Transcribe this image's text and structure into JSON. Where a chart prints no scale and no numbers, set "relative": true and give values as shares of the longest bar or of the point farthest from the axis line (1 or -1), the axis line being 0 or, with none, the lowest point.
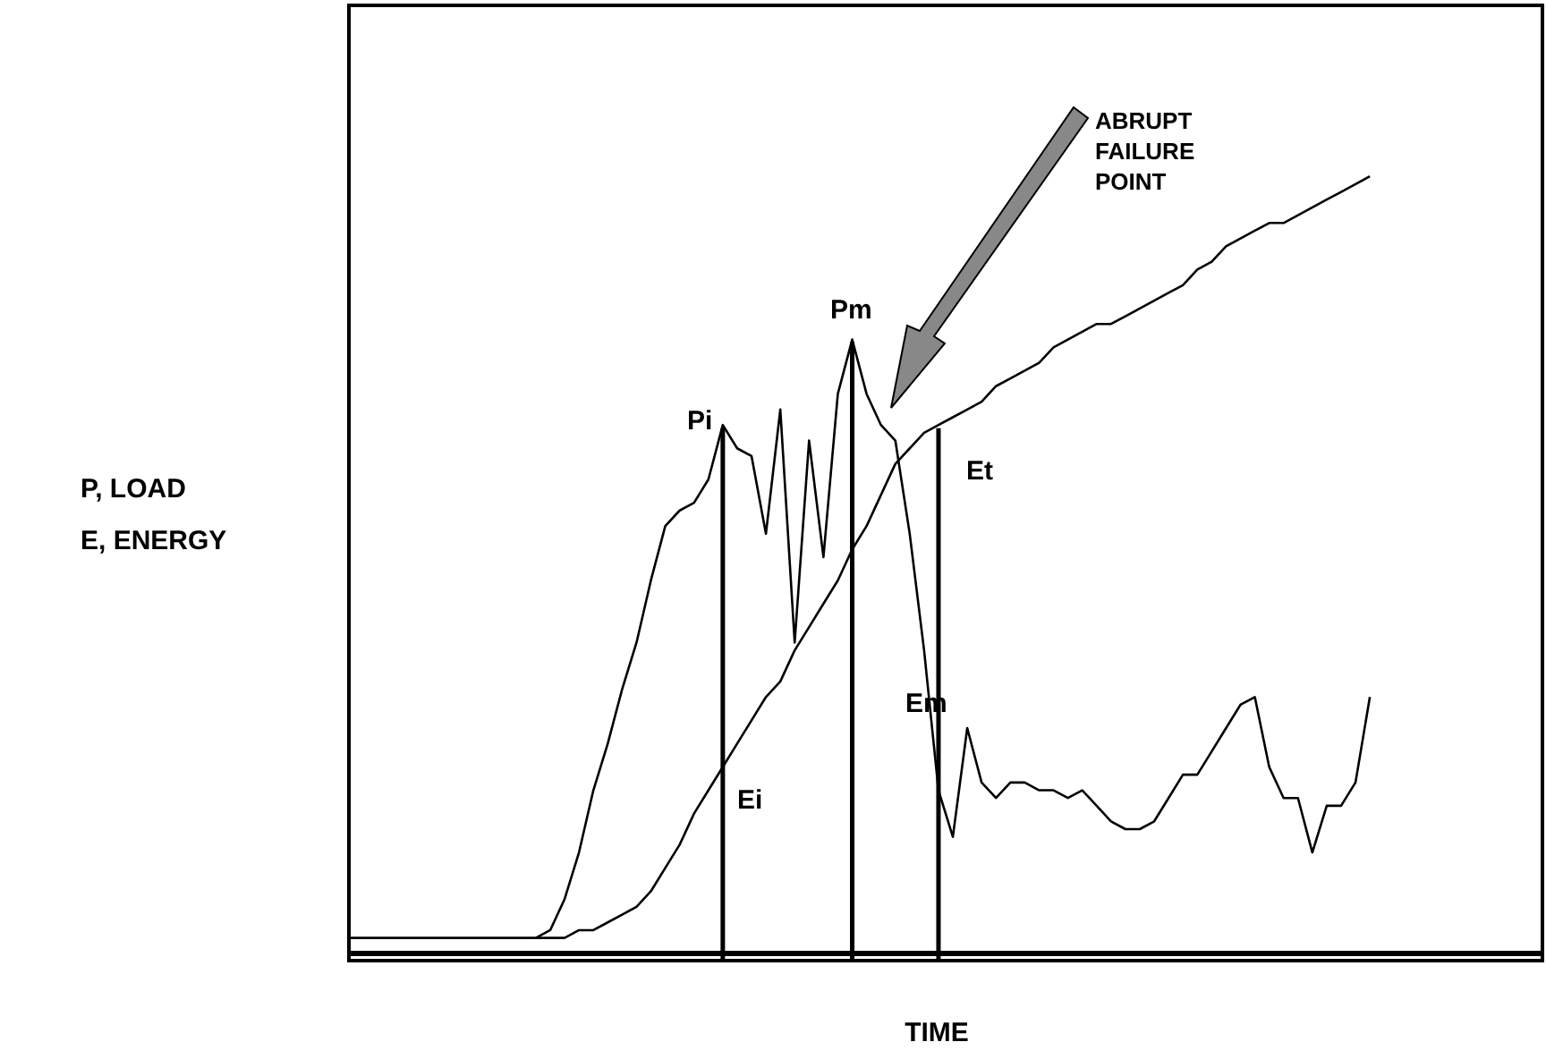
{
  "chart_data": {
    "type": "line",
    "relative": true,
    "xlabel": "TIME",
    "ylabel": "P,  LOAD\nE, ENERGY",
    "grid": false,
    "legend": false,
    "marker": "none",
    "line_style": "solid",
    "categories": [
      null,
      null,
      null,
      null,
      null,
      null,
      null,
      null,
      null,
      null,
      null,
      null,
      null,
      null,
      null,
      null,
      null,
      null,
      null,
      null,
      null,
      null,
      null,
      null,
      null,
      null,
      null,
      null,
      null,
      null,
      null,
      null,
      null,
      null,
      null,
      null,
      null,
      null,
      null,
      null,
      null,
      null,
      null,
      null,
      null,
      null,
      null,
      null,
      null,
      null,
      null,
      null,
      null,
      null,
      null,
      null,
      null,
      null,
      null,
      null,
      null,
      null,
      null,
      null,
      null,
      null,
      null,
      null,
      null,
      null,
      null,
      null,
      null,
      null,
      null,
      null,
      null,
      null,
      null,
      null,
      null,
      null,
      null,
      null
    ],
    "series": [
      {
        "color": "#000000",
        "values": [
          0.02,
          0.02,
          0.02,
          0.02,
          0.02,
          0.02,
          0.02,
          0.02,
          0.02,
          0.02,
          0.02,
          0.02,
          0.02,
          0.02,
          0.03,
          0.07,
          0.13,
          0.21,
          0.27,
          0.34,
          0.4,
          0.48,
          0.55,
          0.57,
          0.58,
          0.61,
          0.68,
          0.65,
          0.64,
          0.54,
          0.7,
          0.4,
          0.66,
          0.51,
          0.72,
          0.79,
          0.72,
          0.68,
          0.66,
          0.54,
          0.39,
          0.21,
          0.15,
          0.29,
          0.22,
          0.2,
          0.22,
          0.22,
          0.21,
          0.21,
          0.2,
          0.21,
          0.19,
          0.17,
          0.16,
          0.16,
          0.17,
          0.2,
          0.23,
          0.23,
          0.26,
          0.29,
          0.32,
          0.33,
          0.24,
          0.2,
          0.2,
          0.13,
          0.19,
          0.19,
          0.22,
          0.33,
          null,
          null,
          null,
          null,
          null,
          null,
          null,
          null,
          null,
          null,
          null,
          null
        ]
      },
      {
        "color": "#000000",
        "values": [
          null,
          null,
          null,
          null,
          null,
          null,
          null,
          null,
          null,
          null,
          null,
          null,
          null,
          0.02,
          0.02,
          0.02,
          0.03,
          0.03,
          0.04,
          0.05,
          0.06,
          0.08,
          0.11,
          0.14,
          0.18,
          0.21,
          0.24,
          0.27,
          0.3,
          0.33,
          0.35,
          0.39,
          0.42,
          0.45,
          0.48,
          0.52,
          0.55,
          0.59,
          0.63,
          0.65,
          0.67,
          0.68,
          0.69,
          0.7,
          0.71,
          0.73,
          0.74,
          0.75,
          0.76,
          0.78,
          0.79,
          0.8,
          0.81,
          0.81,
          0.82,
          0.83,
          0.84,
          0.85,
          0.86,
          0.88,
          0.89,
          0.91,
          0.92,
          0.93,
          0.94,
          0.94,
          0.95,
          0.96,
          0.97,
          0.98,
          0.99,
          1,
          null,
          null,
          null,
          null,
          null,
          null,
          null,
          null,
          null,
          null,
          null,
          null
        ]
      }
    ],
    "annotations": [
      "Pi",
      "Pm",
      "Et",
      "Ei",
      "Em",
      "ABRUPT\nFAILURE\nPOINT"
    ]
  }
}
